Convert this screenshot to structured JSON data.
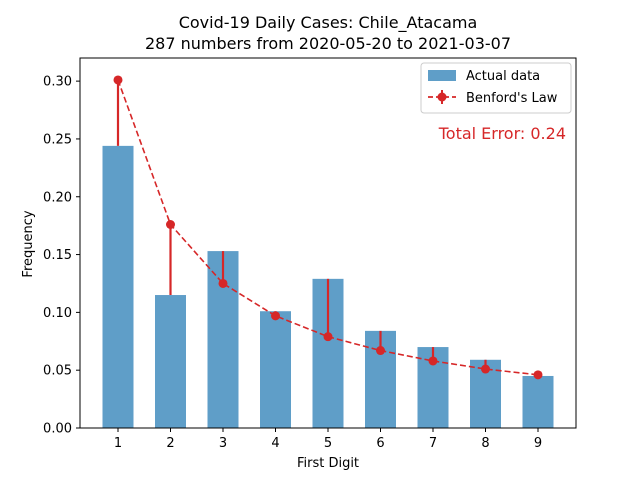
{
  "chart_data": {
    "type": "bar",
    "title": "Covid-19 Daily Cases: Chile_Atacama",
    "subtitle": "287 numbers from 2020-05-20 to 2021-03-07",
    "xlabel": "First Digit",
    "ylabel": "Frequency",
    "categories": [
      "1",
      "2",
      "3",
      "4",
      "5",
      "6",
      "7",
      "8",
      "9"
    ],
    "ylim": [
      0,
      0.32
    ],
    "yticks": [
      "0.00",
      "0.05",
      "0.10",
      "0.15",
      "0.20",
      "0.25",
      "0.30"
    ],
    "grid": false,
    "legend_position": "top-right",
    "series": [
      {
        "name": "Actual data",
        "type": "bar",
        "color": "#5f9ec8",
        "values": [
          0.244,
          0.115,
          0.153,
          0.101,
          0.129,
          0.084,
          0.07,
          0.059,
          0.045
        ]
      },
      {
        "name": "Benford's Law",
        "type": "line",
        "style": "dashed, circle markers, error bars to actual",
        "color": "#d62728",
        "values": [
          0.301,
          0.176,
          0.125,
          0.097,
          0.079,
          0.067,
          0.058,
          0.051,
          0.046
        ]
      }
    ],
    "annotations": [
      {
        "text": "Total Error: 0.24",
        "color": "#d62728",
        "position": "top-right"
      }
    ]
  }
}
